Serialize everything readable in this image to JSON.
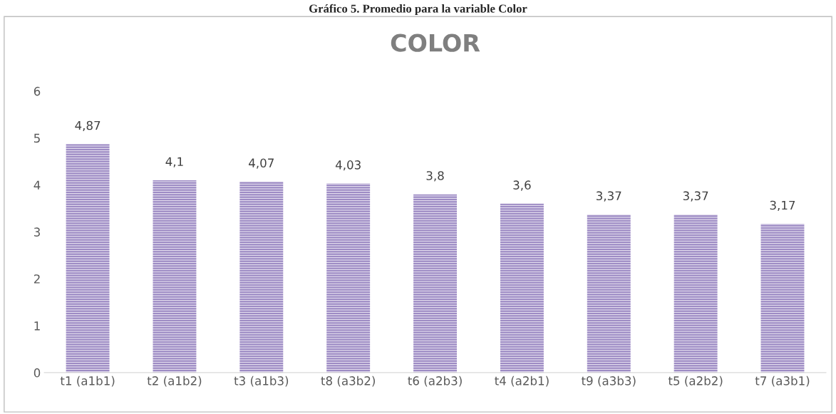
{
  "chart_data": {
    "type": "bar",
    "title": "COLOR",
    "annotations": [
      "Gráfico 5. Promedio para la variable Color"
    ],
    "categories": [
      "t1 (a1b1)",
      "t2 (a1b2)",
      "t3 (a1b3)",
      "t8 (a3b2)",
      "t6 (a2b3)",
      "t4 (a2b1)",
      "t9 (a3b3)",
      "t5 (a2b2)",
      "t7 (a3b1)"
    ],
    "values": [
      4.87,
      4.1,
      4.07,
      4.03,
      3.8,
      3.6,
      3.37,
      3.37,
      3.17
    ],
    "value_labels": [
      "4,87",
      "4,1",
      "4,07",
      "4,03",
      "3,8",
      "3,6",
      "3,37",
      "3,37",
      "3,17"
    ],
    "color": "#9d8bc4",
    "ylim": [
      0,
      6
    ],
    "yticks": [
      0,
      1,
      2,
      3,
      4,
      5,
      6
    ],
    "grid": false
  }
}
